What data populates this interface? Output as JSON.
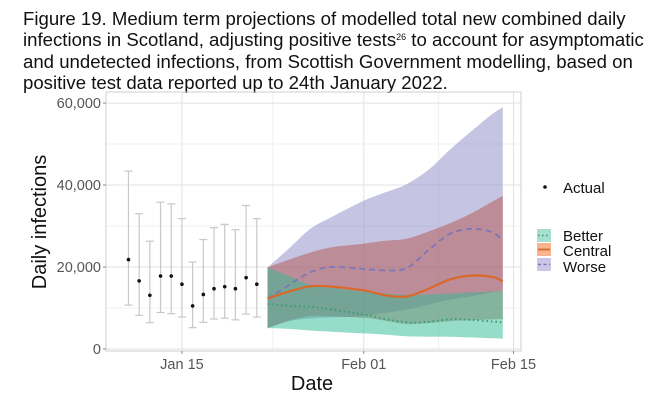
{
  "caption": {
    "part1": "Figure 19. Medium term projections of modelled total new combined daily infections in Scotland, adjusting positive tests",
    "footnote": "26",
    "part2": " to account for asymptomatic and undetected infections, from Scottish Government modelling, based on positive test data reported up to 24th January 2022."
  },
  "chart_data": {
    "type": "line",
    "title": "Figure 19. Medium term projections of modelled total new combined daily infections in Scotland, adjusting positive tests26 to account for asymptomatic and undetected infections, from Scottish Government modelling, based on positive test data reported up to 24th January 2022.",
    "xlabel": "Date",
    "ylabel": "Daily infections",
    "x_unit": "days from Jan 15 2022",
    "xlim": [
      -7.1,
      31.7
    ],
    "ylim": [
      -500,
      62700
    ],
    "grid": true,
    "x_ticks": [
      {
        "day": 0,
        "label": "Jan 15"
      },
      {
        "day": 17,
        "label": "Feb 01"
      },
      {
        "day": 31,
        "label": "Feb 15"
      }
    ],
    "x_minor_ticks": [
      8.5,
      24
    ],
    "y_ticks": [
      {
        "value": 0,
        "label": "0"
      },
      {
        "value": 20000,
        "label": "20,000"
      },
      {
        "value": 40000,
        "label": "40,000"
      },
      {
        "value": 60000,
        "label": "60,000"
      }
    ],
    "y_minor_ticks": [
      10000,
      30000,
      50000
    ],
    "legend": {
      "position": "right",
      "actual_label": "Actual",
      "items": [
        {
          "key": "better",
          "label": "Better"
        },
        {
          "key": "central",
          "label": "Central"
        },
        {
          "key": "worse",
          "label": "Worse"
        }
      ]
    },
    "colors": {
      "actual": "#111111",
      "errorbar": "#c8c8c8",
      "better_fill": "#2ebb94",
      "better_line": "#3a9a72",
      "central_fill": "#b04a3c",
      "central_line": "#d9682a",
      "worse_fill": "#8d89c8",
      "worse_line": "#7c76b8",
      "central_swatch": "#f6b58e",
      "better_swatch": "#a6dfcf",
      "worse_swatch": "#c9c6e6"
    },
    "actual": {
      "name": "Actual",
      "days": [
        -5,
        -4,
        -3,
        -2,
        -1,
        0,
        1,
        2,
        3,
        4,
        5,
        6,
        7
      ],
      "dates": [
        "Jan 10",
        "Jan 11",
        "Jan 12",
        "Jan 13",
        "Jan 14",
        "Jan 15",
        "Jan 16",
        "Jan 17",
        "Jan 18",
        "Jan 19",
        "Jan 20",
        "Jan 21",
        "Jan 22"
      ],
      "values": [
        21800,
        16600,
        13100,
        17800,
        17800,
        15800,
        10500,
        13300,
        14700,
        15200,
        14700,
        17400,
        15800
      ],
      "lower": [
        10700,
        8200,
        6400,
        8900,
        8600,
        7800,
        5200,
        6500,
        7300,
        7500,
        7100,
        8500,
        7800
      ],
      "upper": [
        43400,
        33000,
        26300,
        35800,
        35400,
        31800,
        21200,
        26700,
        29600,
        30400,
        29100,
        35000,
        31800
      ]
    },
    "projection_days": [
      8,
      10,
      12,
      14,
      17,
      19,
      21,
      23,
      25,
      27,
      29,
      30
    ],
    "series": [
      {
        "key": "worse",
        "name": "Worse",
        "values": [
          12300,
          15600,
          18700,
          20000,
          19500,
          19200,
          19700,
          24000,
          28000,
          29300,
          28500,
          26500
        ],
        "lower": [
          5100,
          6800,
          7400,
          7700,
          8000,
          8800,
          9600,
          10800,
          12000,
          12800,
          13800,
          14100
        ],
        "upper": [
          19900,
          24500,
          29300,
          32200,
          36200,
          38200,
          40200,
          43600,
          48500,
          53000,
          57300,
          59000
        ]
      },
      {
        "key": "central",
        "name": "Central",
        "values": [
          12300,
          14000,
          15300,
          15200,
          14300,
          13100,
          12800,
          14600,
          16900,
          17900,
          17600,
          16500
        ],
        "lower": [
          5100,
          6900,
          8000,
          7900,
          7600,
          6900,
          6100,
          6300,
          6800,
          7000,
          7200,
          7300
        ],
        "upper": [
          19900,
          21800,
          23500,
          24800,
          25700,
          26400,
          26900,
          28600,
          30600,
          33000,
          35900,
          37400
        ]
      },
      {
        "key": "better",
        "name": "Better",
        "values": [
          11000,
          10500,
          10300,
          9600,
          8400,
          7300,
          6500,
          6600,
          7200,
          7100,
          6700,
          6500
        ],
        "lower": [
          5100,
          4900,
          4500,
          4200,
          3800,
          3500,
          3100,
          3000,
          3000,
          2800,
          2600,
          2500
        ],
        "upper": [
          19900,
          17800,
          15600,
          14900,
          14000,
          13500,
          13200,
          13300,
          13500,
          13800,
          14000,
          14100
        ]
      }
    ]
  }
}
